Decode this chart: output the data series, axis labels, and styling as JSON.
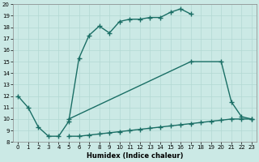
{
  "xlabel": "Humidex (Indice chaleur)",
  "xlim": [
    -0.5,
    23.5
  ],
  "ylim": [
    8,
    20
  ],
  "xticks": [
    0,
    1,
    2,
    3,
    4,
    5,
    6,
    7,
    8,
    9,
    10,
    11,
    12,
    13,
    14,
    15,
    16,
    17,
    18,
    19,
    20,
    21,
    22,
    23
  ],
  "yticks": [
    8,
    9,
    10,
    11,
    12,
    13,
    14,
    15,
    16,
    17,
    18,
    19,
    20
  ],
  "bg_color": "#cbe9e5",
  "line_color": "#1a6e65",
  "grid_color": "#b2d8d3",
  "curve1_x": [
    0,
    1,
    2,
    3,
    4,
    5,
    6,
    7,
    8,
    9,
    10,
    11,
    12,
    13,
    14,
    15,
    16,
    17
  ],
  "curve1_y": [
    12,
    11,
    9.3,
    8.5,
    8.5,
    9.8,
    15.3,
    17.3,
    18.1,
    17.5,
    18.5,
    18.7,
    18.7,
    18.85,
    18.85,
    19.3,
    19.6,
    19.15
  ],
  "curve2_x": [
    5,
    17,
    20,
    21,
    22,
    23
  ],
  "curve2_y": [
    10.0,
    15.0,
    15.0,
    11.5,
    10.2,
    10.0
  ],
  "curve3_x": [
    5,
    6,
    7,
    8,
    9,
    10,
    11,
    12,
    13,
    14,
    15,
    16,
    17,
    18,
    19,
    20,
    21,
    22,
    23
  ],
  "curve3_y": [
    8.5,
    8.5,
    8.6,
    8.7,
    8.8,
    8.9,
    9.0,
    9.1,
    9.2,
    9.3,
    9.4,
    9.5,
    9.6,
    9.7,
    9.8,
    9.9,
    10.0,
    10.0,
    10.0
  ]
}
